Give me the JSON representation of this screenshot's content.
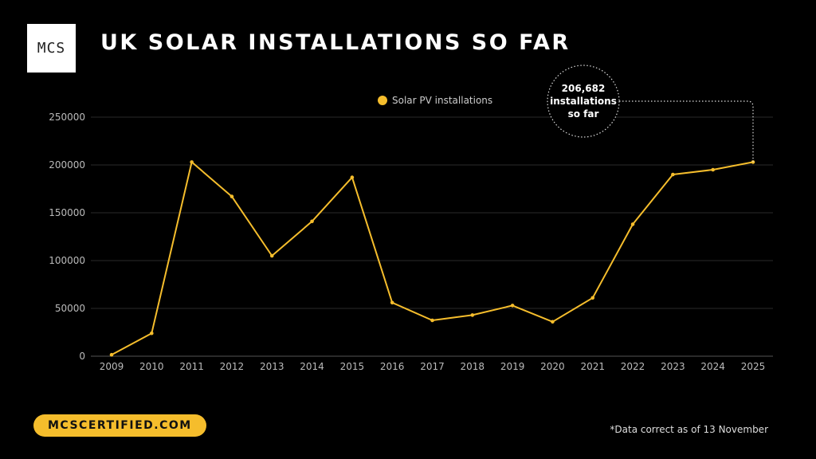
{
  "header": {
    "logo_text": "MCS",
    "title": "UK SOLAR INSTALLATIONS SO FAR"
  },
  "chart_data": {
    "type": "line",
    "title": "UK SOLAR INSTALLATIONS SO FAR",
    "x": [
      "2009",
      "2010",
      "2011",
      "2012",
      "2013",
      "2014",
      "2015",
      "2016",
      "2017",
      "2018",
      "2019",
      "2020",
      "2021",
      "2022",
      "2023",
      "2024",
      "2025"
    ],
    "series": [
      {
        "name": "Solar PV installations",
        "values": [
          1500,
          24000,
          203000,
          167000,
          105000,
          141000,
          187000,
          56000,
          37500,
          43000,
          53000,
          36000,
          61000,
          138000,
          190000,
          195000,
          203000
        ]
      }
    ],
    "ylim": [
      0,
      250000
    ],
    "yticks": [
      "0",
      "50000",
      "100000",
      "150000",
      "200000",
      "250000"
    ],
    "legend": "top-center",
    "grid": true,
    "series_color": "#f5bd2c",
    "annotation": {
      "line1": "206,682",
      "line2": "installations",
      "line3": "so far"
    }
  },
  "footer": {
    "cta_label": "MCSCERTIFIED.COM",
    "footnote": "*Data correct as of 13 November"
  }
}
